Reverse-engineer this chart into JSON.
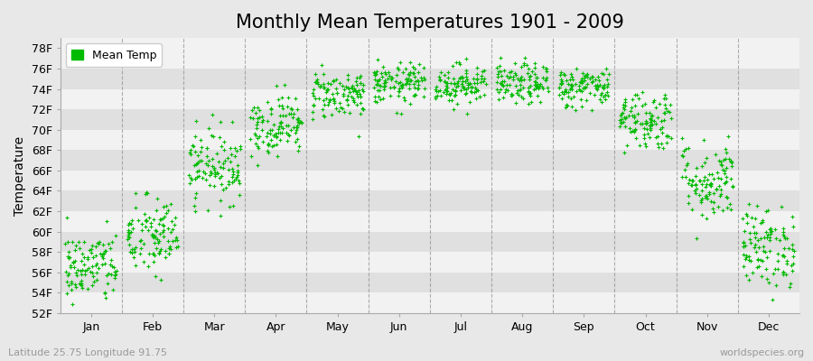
{
  "title": "Monthly Mean Temperatures 1901 - 2009",
  "ylabel": "Temperature",
  "xlabel_bottom_left": "Latitude 25.75 Longitude 91.75",
  "xlabel_bottom_right": "worldspecies.org",
  "legend_label": "Mean Temp",
  "ylim": [
    52,
    79
  ],
  "yticks": [
    52,
    54,
    56,
    58,
    60,
    62,
    64,
    66,
    68,
    70,
    72,
    74,
    76,
    78
  ],
  "ytick_labels": [
    "52F",
    "54F",
    "56F",
    "58F",
    "60F",
    "62F",
    "64F",
    "66F",
    "68F",
    "70F",
    "72F",
    "74F",
    "76F",
    "78F"
  ],
  "months": [
    "Jan",
    "Feb",
    "Mar",
    "Apr",
    "May",
    "Jun",
    "Jul",
    "Aug",
    "Sep",
    "Oct",
    "Nov",
    "Dec"
  ],
  "month_means": [
    56.5,
    59.5,
    66.5,
    70.5,
    73.5,
    74.5,
    74.5,
    74.5,
    74.2,
    71.0,
    65.0,
    58.5
  ],
  "month_stds": [
    1.8,
    2.0,
    1.8,
    1.5,
    1.2,
    1.0,
    1.0,
    1.0,
    1.0,
    1.5,
    2.0,
    2.0
  ],
  "n_years": 109,
  "scatter_color": "#00bb00",
  "scatter_marker": "+",
  "scatter_size": 10,
  "background_color": "#e8e8e8",
  "plot_bg_light": "#f2f2f2",
  "plot_bg_dark": "#e0e0e0",
  "grid_color": "#ffffff",
  "dashed_line_color": "#999999",
  "title_fontsize": 15,
  "axis_label_fontsize": 10,
  "tick_fontsize": 9,
  "legend_fontsize": 9,
  "random_seed": 42
}
